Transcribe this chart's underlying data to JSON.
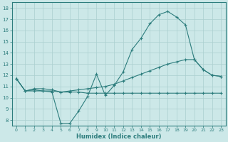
{
  "xlabel": "Humidex (Indice chaleur)",
  "x": [
    0,
    1,
    2,
    3,
    4,
    5,
    6,
    7,
    8,
    9,
    10,
    11,
    12,
    13,
    14,
    15,
    16,
    17,
    18,
    19,
    20,
    21,
    22,
    23
  ],
  "line1_y": [
    11.7,
    10.6,
    10.6,
    10.6,
    10.5,
    7.7,
    7.7,
    8.8,
    10.1,
    12.1,
    10.2,
    11.1,
    12.3,
    14.3,
    15.3,
    16.6,
    17.4,
    17.7,
    17.2,
    16.5,
    13.4,
    12.5,
    12.0,
    11.9
  ],
  "line2_y": [
    11.7,
    10.6,
    10.8,
    10.8,
    10.7,
    10.5,
    10.6,
    10.7,
    10.8,
    10.9,
    11.0,
    11.2,
    11.5,
    11.8,
    12.1,
    12.4,
    12.7,
    13.0,
    13.2,
    13.4,
    13.4,
    12.5,
    12.0,
    11.9
  ],
  "line3_y": [
    11.7,
    10.6,
    10.7,
    10.6,
    10.6,
    10.5,
    10.5,
    10.5,
    10.4,
    10.4,
    10.4,
    10.4,
    10.4,
    10.4,
    10.4,
    10.4,
    10.4,
    10.4,
    10.4,
    10.4,
    10.4,
    10.4,
    10.4,
    10.4
  ],
  "line_color": "#2d7d7d",
  "bg_color": "#cce8e8",
  "grid_color": "#aacfcf",
  "ylim": [
    7.5,
    18.5
  ],
  "xlim": [
    -0.5,
    23.5
  ],
  "yticks": [
    8,
    9,
    10,
    11,
    12,
    13,
    14,
    15,
    16,
    17,
    18
  ],
  "xticks": [
    0,
    1,
    2,
    3,
    4,
    5,
    6,
    7,
    8,
    9,
    10,
    11,
    12,
    13,
    14,
    15,
    16,
    17,
    18,
    19,
    20,
    21,
    22,
    23
  ]
}
